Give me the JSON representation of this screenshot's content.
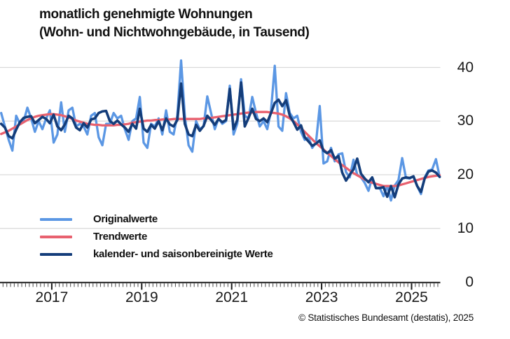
{
  "title": {
    "line1": "monatlich genehmigte Wohnungen",
    "line2": "(Wohn- und Nichtwohngebäude, in Tausend)"
  },
  "footer": {
    "copyright": "© Statistisches Bundesamt (destatis), 2025"
  },
  "colors": {
    "original": "#5b97e4",
    "trend": "#e8616f",
    "adjusted": "#143d7a",
    "grid": "#d9d9d9",
    "axis": "#1a1a1a",
    "tick_minor": "#595959",
    "text": "#1a1a1a"
  },
  "chart_data": {
    "type": "line",
    "title": "monatlich genehmigte Wohnungen (Wohn- und Nichtwohngebäude, in Tausend)",
    "unit": "Tausend Wohnungen",
    "frequency": "monthly",
    "start_month": "2015-11",
    "end_month": "2025-08",
    "x_tick_years": [
      2017,
      2019,
      2021,
      2023,
      2025
    ],
    "y_ticks": [
      0,
      10,
      20,
      30,
      40
    ],
    "ylim": [
      0,
      42
    ],
    "grid": "horizontal",
    "legend_position": "inside-bottom-left",
    "series": [
      {
        "name": "Originalwerte",
        "color": "#5b97e4",
        "values": [
          31.5,
          29.0,
          26.5,
          24.5,
          31.0,
          29.5,
          30.0,
          32.5,
          30.5,
          28.0,
          30.0,
          28.5,
          30.5,
          32.0,
          26.0,
          27.5,
          33.5,
          28.0,
          32.0,
          32.5,
          29.0,
          29.5,
          29.0,
          27.5,
          31.0,
          31.5,
          27.0,
          25.5,
          29.5,
          29.5,
          31.5,
          30.5,
          31.0,
          28.5,
          26.5,
          30.0,
          30.5,
          34.5,
          26.0,
          25.0,
          29.5,
          29.0,
          30.5,
          27.5,
          32.0,
          28.0,
          27.5,
          31.0,
          41.3,
          31.0,
          25.5,
          24.3,
          30.0,
          28.5,
          29.0,
          34.6,
          31.5,
          28.5,
          30.5,
          29.5,
          30.0,
          36.6,
          27.5,
          29.5,
          37.8,
          31.0,
          30.5,
          34.5,
          31.5,
          29.0,
          30.0,
          28.5,
          32.0,
          40.3,
          29.0,
          28.2,
          35.2,
          31.5,
          30.5,
          31.0,
          28.0,
          26.5,
          27.0,
          25.0,
          26.0,
          32.8,
          22.1,
          22.5,
          25.0,
          22.5,
          23.8,
          24.0,
          20.5,
          19.5,
          22.8,
          20.0,
          19.5,
          18.5,
          17.0,
          19.5,
          17.5,
          17.6,
          16.0,
          17.9,
          15.2,
          18.0,
          19.0,
          23.1,
          19.4,
          19.3,
          19.7,
          17.9,
          16.4,
          19.5,
          20.8,
          21.0,
          22.9,
          19.6
        ]
      },
      {
        "name": "Trendwerte",
        "color": "#e8616f",
        "values": [
          27.6,
          27.9,
          28.2,
          28.6,
          29.0,
          29.4,
          29.8,
          30.2,
          30.5,
          30.8,
          31.0,
          31.1,
          31.2,
          31.3,
          31.3,
          31.2,
          31.1,
          30.9,
          30.7,
          30.4,
          30.1,
          29.9,
          29.7,
          29.5,
          29.4,
          29.3,
          29.3,
          29.2,
          29.2,
          29.2,
          29.2,
          29.3,
          29.3,
          29.4,
          29.5,
          29.7,
          29.8,
          29.9,
          30.0,
          30.1,
          30.1,
          30.2,
          30.2,
          30.3,
          30.3,
          30.3,
          30.4,
          30.4,
          30.4,
          30.4,
          30.4,
          30.4,
          30.4,
          30.4,
          30.5,
          30.5,
          30.6,
          30.7,
          30.8,
          30.9,
          31.0,
          31.1,
          31.2,
          31.3,
          31.4,
          31.5,
          31.6,
          31.6,
          31.7,
          31.7,
          31.7,
          31.7,
          31.6,
          31.5,
          31.4,
          31.2,
          30.9,
          30.5,
          30.0,
          29.4,
          28.7,
          28.0,
          27.3,
          26.6,
          25.9,
          25.3,
          24.7,
          24.1,
          23.5,
          22.9,
          22.3,
          21.8,
          21.3,
          20.8,
          20.3,
          19.9,
          19.5,
          19.1,
          18.8,
          18.5,
          18.3,
          18.1,
          17.9,
          17.9,
          17.9,
          17.9,
          18.0,
          18.2,
          18.4,
          18.6,
          18.8,
          19.0,
          19.2,
          19.4,
          19.6,
          19.7,
          19.8,
          19.9
        ]
      },
      {
        "name": "kalender- und saisonbereinigte Werte",
        "color": "#143d7a",
        "values": [
          29.5,
          28.8,
          27.2,
          26.8,
          28.4,
          29.8,
          30.6,
          30.8,
          30.9,
          29.6,
          30.2,
          30.8,
          30.4,
          29.6,
          31.2,
          29.0,
          28.3,
          29.4,
          31.0,
          30.5,
          28.8,
          28.3,
          29.6,
          28.8,
          30.3,
          30.5,
          31.5,
          31.8,
          31.9,
          30.0,
          29.5,
          30.1,
          29.4,
          28.8,
          28.0,
          29.5,
          28.6,
          32.3,
          28.6,
          28.0,
          29.3,
          28.6,
          30.0,
          28.3,
          30.5,
          29.4,
          29.0,
          30.2,
          37.0,
          29.5,
          27.5,
          27.2,
          29.3,
          28.2,
          29.1,
          31.0,
          30.2,
          29.3,
          30.4,
          29.8,
          30.2,
          36.0,
          28.5,
          30.2,
          37.2,
          29.0,
          30.6,
          32.3,
          30.4,
          30.0,
          30.5,
          29.8,
          31.5,
          33.4,
          34.0,
          32.8,
          33.9,
          31.0,
          29.8,
          28.4,
          29.2,
          27.0,
          26.2,
          25.4,
          25.8,
          26.4,
          24.5,
          24.0,
          24.6,
          23.0,
          23.5,
          20.4,
          18.9,
          20.0,
          21.0,
          23.0,
          20.2,
          19.3,
          18.6,
          19.5,
          17.5,
          17.5,
          17.7,
          15.9,
          17.9,
          15.8,
          18.2,
          19.3,
          19.5,
          19.4,
          19.7,
          17.9,
          16.8,
          19.3,
          20.6,
          20.8,
          20.4,
          19.6
        ]
      }
    ]
  }
}
